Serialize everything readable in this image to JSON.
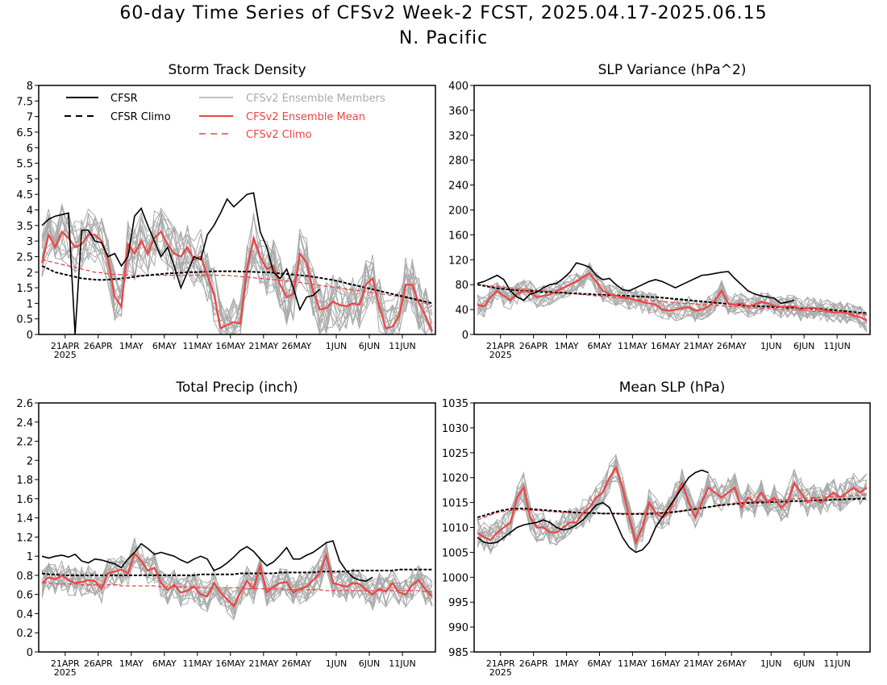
{
  "figure": {
    "title_line1": "60-day Time Series of CFSv2 Week-2 FCST, 2025.04.17-2025.06.15",
    "title_line2": "N. Pacific"
  },
  "colors": {
    "cfsr": "#000000",
    "members": "#aaaaaa",
    "ens_mean": "#ee4444",
    "background": "#ffffff"
  },
  "legend": {
    "cfsr": "CFSR",
    "cfsr_climo": "CFSR Climo",
    "members": "CFSv2 Ensemble Members",
    "ens_mean": "CFSv2 Ensemble Mean",
    "cfsv2_climo": "CFSv2 Climo"
  },
  "x_axis": {
    "tick_labels": [
      "21APR",
      "26APR",
      "1MAY",
      "6MAY",
      "11MAY",
      "16MAY",
      "21MAY",
      "26MAY",
      "1JUN",
      "6JUN",
      "11JUN"
    ],
    "tick_days": [
      4,
      9,
      14,
      19,
      24,
      29,
      34,
      39,
      45,
      50,
      55
    ],
    "year_label": "2025"
  },
  "chart_data": [
    {
      "id": "std",
      "type": "line",
      "title": "Storm Track Density",
      "ylim": [
        0,
        8
      ],
      "yticks": [
        "0",
        "0.5",
        "1",
        "1.5",
        "2",
        "2.5",
        "3",
        "3.5",
        "4",
        "4.5",
        "5",
        "5.5",
        "6",
        "6.5",
        "7",
        "7.5",
        "8"
      ],
      "show_legend": true,
      "cfsr": [
        3.5,
        3.7,
        3.8,
        3.85,
        3.9,
        0,
        3.35,
        3.35,
        3.0,
        2.95,
        2.5,
        2.6,
        2.2,
        2.5,
        3.8,
        4.05,
        3.5,
        3.0,
        2.5,
        2.8,
        2.2,
        1.5,
        2.0,
        2.5,
        2.4,
        3.2,
        3.5,
        3.9,
        4.35,
        4.1,
        4.3,
        4.5,
        4.55,
        3.3,
        2.8,
        2.0,
        1.8,
        2.1,
        1.5,
        0.8,
        1.2,
        1.25,
        1.45
      ],
      "cfsr_climo": [
        2.2,
        2.1,
        2.0,
        1.95,
        1.9,
        1.85,
        1.8,
        1.78,
        1.76,
        1.75,
        1.76,
        1.78,
        1.8,
        1.82,
        1.85,
        1.88,
        1.9,
        1.92,
        1.94,
        1.96,
        1.97,
        1.98,
        2.0,
        2.0,
        2.01,
        2.02,
        2.03,
        2.03,
        2.03,
        2.03,
        2.02,
        2.02,
        2.01,
        2.0,
        2.0,
        1.98,
        1.96,
        1.94,
        1.92,
        1.9,
        1.88,
        1.85,
        1.82,
        1.78,
        1.75,
        1.7,
        1.65,
        1.6,
        1.55,
        1.5,
        1.45,
        1.4,
        1.35,
        1.3,
        1.25,
        1.2,
        1.15,
        1.1,
        1.05,
        1.0
      ],
      "ens_mean": [
        2.3,
        3.2,
        2.8,
        3.3,
        3.1,
        2.8,
        2.9,
        3.2,
        3.2,
        3.0,
        2.4,
        1.2,
        0.9,
        2.9,
        2.6,
        3.0,
        2.6,
        3.1,
        3.3,
        2.9,
        2.6,
        2.5,
        2.8,
        2.4,
        2.5,
        1.9,
        1.3,
        0.2,
        0.3,
        0.4,
        0.35,
        2.1,
        3.1,
        2.5,
        2.1,
        2.2,
        1.6,
        1.2,
        1.3,
        2.6,
        2.3,
        1.4,
        0.8,
        0.85,
        1.05,
        0.95,
        0.9,
        1.0,
        0.95,
        1.6,
        1.8,
        0.9,
        0.2,
        0.25,
        0.6,
        1.6,
        1.6,
        1.0,
        0.6,
        0.1
      ],
      "cfsv2_climo": [
        2.4,
        2.35,
        2.3,
        2.25,
        2.2,
        2.15,
        2.1,
        2.05,
        2.0,
        1.98,
        1.95,
        1.93,
        1.92,
        1.91,
        1.9,
        1.9,
        1.9,
        1.9,
        1.9,
        1.9,
        1.9,
        1.9,
        1.9,
        1.9,
        1.9,
        1.9,
        1.9,
        1.9,
        1.9,
        1.88,
        1.86,
        1.84,
        1.82,
        1.8,
        1.78,
        1.76,
        1.74,
        1.72,
        1.7,
        1.67,
        1.64,
        1.61,
        1.58,
        1.55,
        1.52,
        1.49,
        1.46,
        1.43,
        1.4,
        1.37,
        1.34,
        1.31,
        1.28,
        1.25,
        1.22,
        1.19,
        1.16,
        1.13,
        1.0,
        0.9
      ],
      "member_spread": 0.9,
      "member_clip": [
        0,
        8
      ]
    },
    {
      "id": "slpvar",
      "type": "line",
      "title": "SLP Variance (hPa^2)",
      "ylim": [
        0,
        400
      ],
      "yticks": [
        "0",
        "40",
        "80",
        "120",
        "160",
        "200",
        "240",
        "280",
        "320",
        "360",
        "400"
      ],
      "show_legend": false,
      "cfsr": [
        82,
        85,
        90,
        95,
        88,
        70,
        60,
        55,
        65,
        68,
        75,
        80,
        82,
        90,
        100,
        115,
        112,
        108,
        95,
        88,
        90,
        80,
        72,
        70,
        75,
        80,
        85,
        88,
        85,
        80,
        75,
        80,
        85,
        90,
        95,
        96,
        98,
        100,
        101,
        90,
        80,
        70,
        65,
        62,
        60,
        58,
        50,
        52,
        55
      ],
      "cfsr_climo": [
        80,
        78,
        76,
        74,
        73,
        72,
        71,
        70,
        70,
        69,
        68,
        68,
        67,
        67,
        66,
        66,
        65,
        65,
        64,
        64,
        63,
        63,
        62,
        62,
        61,
        61,
        60,
        60,
        59,
        58,
        57,
        56,
        55,
        54,
        53,
        52,
        51,
        50,
        49,
        48,
        47,
        46,
        46,
        45,
        45,
        44,
        44,
        43,
        43,
        42,
        42,
        41,
        41,
        40,
        39,
        38,
        37,
        36,
        35,
        34
      ],
      "ens_mean": [
        48,
        45,
        60,
        70,
        62,
        55,
        65,
        70,
        68,
        60,
        62,
        64,
        70,
        75,
        80,
        85,
        92,
        98,
        85,
        70,
        65,
        62,
        60,
        58,
        55,
        52,
        50,
        48,
        40,
        38,
        40,
        42,
        44,
        38,
        40,
        45,
        55,
        70,
        50,
        48,
        50,
        45,
        48,
        52,
        50,
        46,
        44,
        45,
        45,
        40,
        42,
        43,
        40,
        38,
        35,
        36,
        34,
        30,
        28,
        22
      ],
      "cfsv2_climo": [
        80,
        79,
        78,
        77,
        76,
        75,
        74,
        73,
        72,
        71,
        70,
        69,
        68,
        67,
        66,
        65,
        64,
        63,
        62,
        61,
        60,
        59,
        58,
        57,
        56,
        55,
        54,
        54,
        53,
        52,
        51,
        50,
        50,
        49,
        48,
        47,
        47,
        46,
        45,
        45,
        44,
        43,
        43,
        42,
        42,
        41,
        40,
        40,
        39,
        39,
        38,
        37,
        37,
        36,
        36,
        35,
        34,
        33,
        32,
        31
      ],
      "member_spread": 18,
      "member_clip": [
        0,
        400
      ]
    },
    {
      "id": "precip",
      "type": "line",
      "title": "Total Precip (inch)",
      "ylim": [
        0,
        2.6
      ],
      "yticks": [
        "0",
        "0.2",
        "0.4",
        "0.6",
        "0.8",
        "1",
        "1.2",
        "1.4",
        "1.6",
        "1.8",
        "2",
        "2.2",
        "2.4",
        "2.6"
      ],
      "show_legend": false,
      "cfsr": [
        1.0,
        0.98,
        1.0,
        1.01,
        0.99,
        1.02,
        0.95,
        0.93,
        0.97,
        0.96,
        0.94,
        0.92,
        0.88,
        0.97,
        1.04,
        1.13,
        1.08,
        1.02,
        1.04,
        1.02,
        1.0,
        0.96,
        0.93,
        0.97,
        1.0,
        0.97,
        0.85,
        0.88,
        0.93,
        0.99,
        1.06,
        1.1,
        1.05,
        0.97,
        0.9,
        0.94,
        1.01,
        1.09,
        0.97,
        0.97,
        1.01,
        1.04,
        1.09,
        1.14,
        1.16,
        0.95,
        0.85,
        0.78,
        0.75,
        0.74,
        0.78
      ],
      "cfsr_climo": [
        0.82,
        0.81,
        0.81,
        0.8,
        0.8,
        0.8,
        0.8,
        0.8,
        0.8,
        0.8,
        0.8,
        0.8,
        0.8,
        0.8,
        0.8,
        0.8,
        0.8,
        0.8,
        0.8,
        0.8,
        0.8,
        0.8,
        0.8,
        0.8,
        0.81,
        0.81,
        0.81,
        0.81,
        0.81,
        0.81,
        0.82,
        0.82,
        0.82,
        0.82,
        0.82,
        0.82,
        0.83,
        0.83,
        0.83,
        0.83,
        0.83,
        0.83,
        0.84,
        0.84,
        0.84,
        0.84,
        0.84,
        0.85,
        0.85,
        0.85,
        0.85,
        0.85,
        0.85,
        0.85,
        0.86,
        0.86,
        0.86,
        0.86,
        0.86,
        0.86
      ],
      "ens_mean": [
        0.72,
        0.78,
        0.76,
        0.8,
        0.75,
        0.72,
        0.73,
        0.75,
        0.74,
        0.66,
        0.82,
        0.84,
        0.86,
        0.82,
        1.03,
        0.95,
        0.85,
        0.88,
        0.72,
        0.65,
        0.7,
        0.62,
        0.64,
        0.68,
        0.6,
        0.58,
        0.72,
        0.62,
        0.55,
        0.48,
        0.62,
        0.74,
        0.66,
        0.9,
        0.62,
        0.68,
        0.72,
        0.73,
        0.62,
        0.66,
        0.68,
        0.75,
        0.82,
        1.01,
        0.72,
        0.7,
        0.68,
        0.72,
        0.71,
        0.65,
        0.6,
        0.66,
        0.63,
        0.72,
        0.62,
        0.6,
        0.7,
        0.75,
        0.65,
        0.58
      ],
      "cfsv2_climo": [
        0.72,
        0.72,
        0.71,
        0.71,
        0.71,
        0.71,
        0.7,
        0.7,
        0.7,
        0.7,
        0.7,
        0.7,
        0.69,
        0.69,
        0.69,
        0.69,
        0.69,
        0.69,
        0.68,
        0.68,
        0.68,
        0.68,
        0.68,
        0.68,
        0.67,
        0.67,
        0.67,
        0.67,
        0.67,
        0.67,
        0.67,
        0.66,
        0.66,
        0.66,
        0.66,
        0.66,
        0.66,
        0.65,
        0.65,
        0.65,
        0.65,
        0.65,
        0.65,
        0.64,
        0.64,
        0.64,
        0.64,
        0.64,
        0.64,
        0.64,
        0.64,
        0.64,
        0.64,
        0.64,
        0.64,
        0.64,
        0.64,
        0.64,
        0.63,
        0.63
      ],
      "member_spread": 0.16,
      "member_clip": [
        0,
        2.6
      ]
    },
    {
      "id": "mslp",
      "type": "line",
      "title": "Mean SLP (hPa)",
      "ylim": [
        985,
        1035
      ],
      "yticks": [
        "985",
        "990",
        "995",
        "1000",
        "1005",
        "1010",
        "1015",
        "1020",
        "1025",
        "1030",
        "1035"
      ],
      "show_legend": false,
      "cfsr": [
        1008,
        1007,
        1006.8,
        1007,
        1008,
        1009,
        1010,
        1010.5,
        1010.8,
        1011,
        1011.5,
        1011,
        1010,
        1009.5,
        1009.8,
        1010.5,
        1011.5,
        1013,
        1014.5,
        1015,
        1014,
        1011,
        1008,
        1006,
        1005,
        1005.5,
        1007,
        1010,
        1012,
        1014,
        1016,
        1018,
        1020,
        1021,
        1021.5,
        1021
      ],
      "cfsr_climo": [
        1012,
        1012.4,
        1012.8,
        1013.2,
        1013.5,
        1013.7,
        1013.8,
        1013.8,
        1013.7,
        1013.6,
        1013.5,
        1013.4,
        1013.3,
        1013.2,
        1013.1,
        1013,
        1013,
        1012.9,
        1012.9,
        1012.8,
        1012.8,
        1012.8,
        1012.7,
        1012.7,
        1012.7,
        1012.7,
        1012.7,
        1012.8,
        1012.9,
        1013,
        1013.1,
        1013.3,
        1013.5,
        1013.7,
        1013.9,
        1014.1,
        1014.3,
        1014.5,
        1014.6,
        1014.7,
        1014.8,
        1014.9,
        1015,
        1015,
        1015.1,
        1015.1,
        1015.2,
        1015.2,
        1015.3,
        1015.3,
        1015.4,
        1015.4,
        1015.5,
        1015.5,
        1015.6,
        1015.6,
        1015.7,
        1015.7,
        1015.8,
        1015.8
      ],
      "ens_mean": [
        1009,
        1008,
        1007.5,
        1009,
        1010,
        1011,
        1016,
        1018,
        1012,
        1010,
        1010,
        1009,
        1009,
        1010,
        1011,
        1011,
        1013,
        1014,
        1016,
        1017,
        1020,
        1022,
        1018,
        1012,
        1007,
        1010,
        1015,
        1013,
        1012,
        1013,
        1016,
        1019,
        1015,
        1012,
        1015,
        1018,
        1017,
        1016,
        1017,
        1018,
        1014,
        1016,
        1015,
        1017,
        1015,
        1016,
        1014,
        1015,
        1019,
        1017,
        1015,
        1016,
        1015,
        1016,
        1017,
        1016,
        1017,
        1018,
        1017,
        1018
      ],
      "cfsv2_climo": [
        1011.5,
        1012,
        1012.5,
        1013,
        1013.2,
        1013.4,
        1013.5,
        1013.5,
        1013.5,
        1013.4,
        1013.3,
        1013.2,
        1013.1,
        1013,
        1013,
        1012.9,
        1012.9,
        1012.9,
        1012.8,
        1012.8,
        1012.8,
        1012.8,
        1012.8,
        1012.8,
        1012.8,
        1012.9,
        1012.9,
        1013,
        1013,
        1013.1,
        1013.2,
        1013.3,
        1013.5,
        1013.7,
        1013.9,
        1014.1,
        1014.3,
        1014.5,
        1014.7,
        1014.9,
        1015,
        1015.1,
        1015.2,
        1015.3,
        1015.4,
        1015.5,
        1015.6,
        1015.6,
        1015.7,
        1015.8,
        1015.9,
        1016,
        1016,
        1016.1,
        1016.2,
        1016.2,
        1016.3,
        1016.4,
        1016.5,
        1016.6
      ],
      "member_spread": 3.0,
      "member_clip": [
        985,
        1035
      ]
    }
  ]
}
